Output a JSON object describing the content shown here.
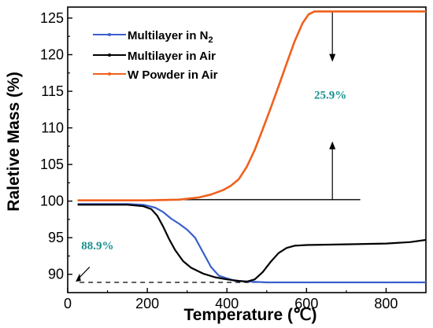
{
  "chart_data": {
    "type": "line",
    "xlabel": "Temperature (℃)",
    "ylabel": "Raletive Mass (%)",
    "xlim": [
      0,
      900
    ],
    "ylim": [
      87.5,
      126.5
    ],
    "x_ticks": [
      0,
      200,
      400,
      600,
      800
    ],
    "y_ticks": [
      90,
      95,
      100,
      105,
      110,
      115,
      120,
      125
    ],
    "legend_position": "top-left",
    "series": [
      {
        "name": "Multilayer in N₂",
        "name_main": "Multilayer in N",
        "name_sub": "2",
        "color": "#3a5fcd",
        "points": [
          [
            25,
            99.6
          ],
          [
            100,
            99.6
          ],
          [
            150,
            99.6
          ],
          [
            190,
            99.5
          ],
          [
            220,
            99.1
          ],
          [
            240,
            98.5
          ],
          [
            260,
            97.6
          ],
          [
            280,
            96.9
          ],
          [
            300,
            96.1
          ],
          [
            320,
            95.0
          ],
          [
            340,
            93.0
          ],
          [
            360,
            91.0
          ],
          [
            380,
            89.8
          ],
          [
            420,
            89.1
          ],
          [
            500,
            88.9
          ],
          [
            600,
            88.9
          ],
          [
            700,
            88.9
          ],
          [
            800,
            88.9
          ],
          [
            900,
            88.9
          ]
        ]
      },
      {
        "name": "Multilayer in Air",
        "color": "#000000",
        "points": [
          [
            25,
            99.5
          ],
          [
            100,
            99.5
          ],
          [
            150,
            99.5
          ],
          [
            190,
            99.3
          ],
          [
            210,
            98.9
          ],
          [
            225,
            98.0
          ],
          [
            240,
            96.5
          ],
          [
            255,
            94.8
          ],
          [
            270,
            93.3
          ],
          [
            290,
            91.8
          ],
          [
            310,
            90.9
          ],
          [
            340,
            90.1
          ],
          [
            370,
            89.6
          ],
          [
            400,
            89.3
          ],
          [
            430,
            89.1
          ],
          [
            450,
            89.0
          ],
          [
            470,
            89.3
          ],
          [
            490,
            90.3
          ],
          [
            510,
            91.7
          ],
          [
            530,
            92.9
          ],
          [
            550,
            93.6
          ],
          [
            570,
            93.9
          ],
          [
            600,
            94.0
          ],
          [
            700,
            94.1
          ],
          [
            800,
            94.2
          ],
          [
            860,
            94.4
          ],
          [
            900,
            94.7
          ]
        ]
      },
      {
        "name": "W Powder in Air",
        "color": "#f0601c",
        "points": [
          [
            25,
            100.1
          ],
          [
            100,
            100.1
          ],
          [
            200,
            100.1
          ],
          [
            280,
            100.2
          ],
          [
            330,
            100.5
          ],
          [
            360,
            100.9
          ],
          [
            390,
            101.5
          ],
          [
            410,
            102.1
          ],
          [
            430,
            103.0
          ],
          [
            450,
            104.7
          ],
          [
            470,
            107.0
          ],
          [
            490,
            109.8
          ],
          [
            510,
            112.7
          ],
          [
            530,
            115.7
          ],
          [
            550,
            118.8
          ],
          [
            570,
            121.8
          ],
          [
            590,
            124.3
          ],
          [
            605,
            125.5
          ],
          [
            620,
            125.9
          ],
          [
            650,
            125.9
          ],
          [
            700,
            125.9
          ],
          [
            800,
            125.9
          ],
          [
            900,
            125.9
          ]
        ]
      }
    ],
    "annotations": [
      {
        "text": "25.9%",
        "x": 660,
        "y": 114.0
      },
      {
        "text": "88.9%",
        "x": 75,
        "y": 93.4
      }
    ],
    "reference_lines": {
      "baseline_100": {
        "x_start": 280,
        "x_end": 735,
        "y": 100.2
      },
      "dashed_88_9": {
        "x_start": 30,
        "x_end": 900,
        "y": 88.9
      },
      "arrow_x": 665,
      "arrow_top_y": 125.9,
      "arrow_bottom_y": 100.2
    }
  }
}
